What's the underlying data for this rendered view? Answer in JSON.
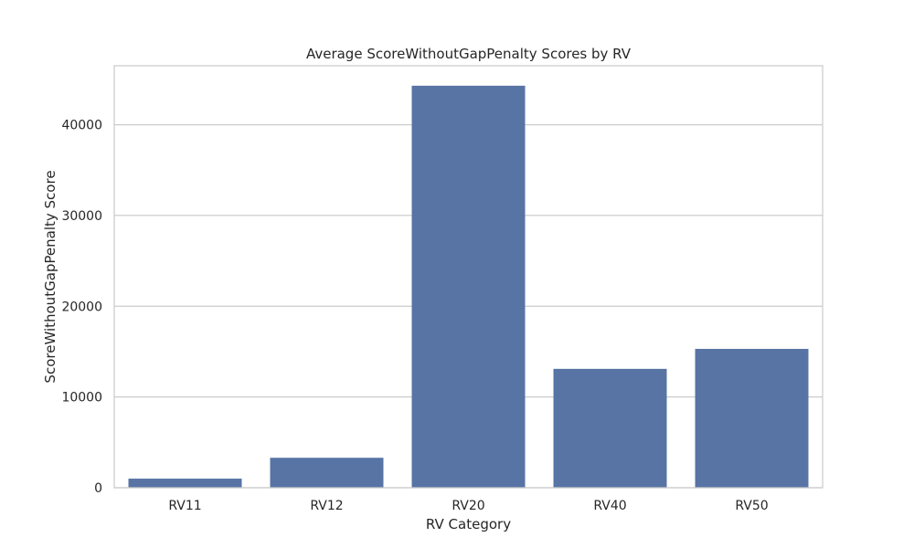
{
  "chart_data": {
    "type": "bar",
    "title": "Average ScoreWithoutGapPenalty Scores by RV",
    "xlabel": "RV Category",
    "ylabel": "ScoreWithoutGapPenalty Score",
    "categories": [
      "RV11",
      "RV12",
      "RV20",
      "RV40",
      "RV50"
    ],
    "values": [
      1000,
      3300,
      44300,
      13100,
      15300
    ],
    "ylim": [
      0,
      46500
    ],
    "yticks": [
      0,
      10000,
      20000,
      30000,
      40000
    ],
    "ytick_labels": [
      "0",
      "10000",
      "20000",
      "30000",
      "40000"
    ],
    "grid": true,
    "bar_color": "#5874a5"
  }
}
